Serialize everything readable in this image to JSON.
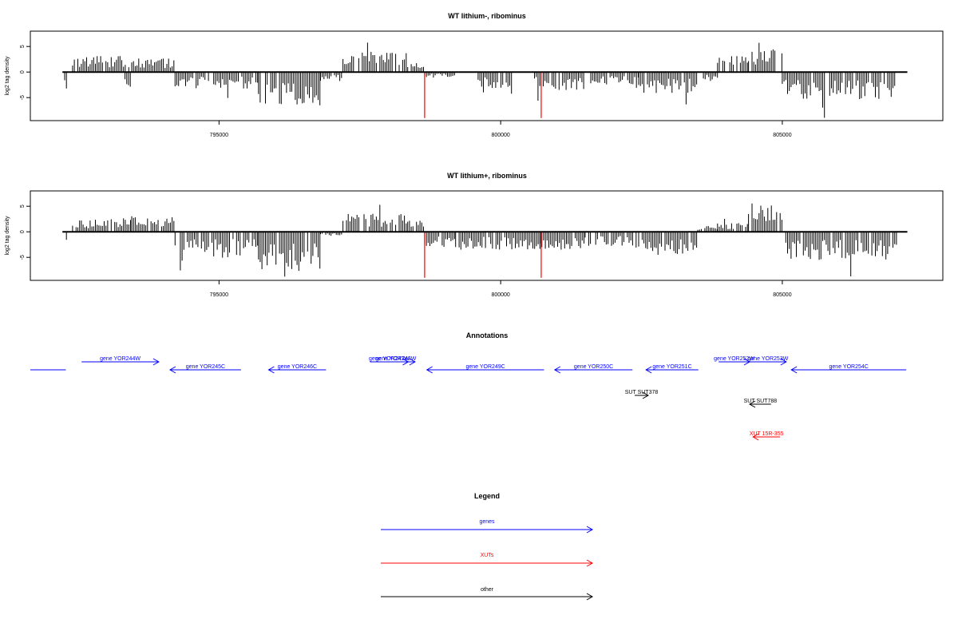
{
  "chart_data": [
    {
      "type": "bar",
      "title": "WT lithium-, ribominus",
      "ylabel": "log2 tag density",
      "xlim": [
        791650,
        807850
      ],
      "ylim": [
        -9.5,
        8.0
      ],
      "x_ticks": [
        795000,
        800000,
        805000
      ],
      "y_ticks": [
        -5,
        0,
        5
      ],
      "grid": false,
      "track_start": 792220,
      "track_end": 807220,
      "density_profile": [
        {
          "start": 792260,
          "end": 792300,
          "value": -3.0
        },
        {
          "start": 792400,
          "end": 793400,
          "value": 2.5
        },
        {
          "start": 793300,
          "end": 793450,
          "value": -3.5
        },
        {
          "start": 793450,
          "end": 794220,
          "value": 2.2
        },
        {
          "start": 794220,
          "end": 795700,
          "value": -2.6
        },
        {
          "start": 795700,
          "end": 796800,
          "value": -5.2
        },
        {
          "start": 796800,
          "end": 797200,
          "value": -1.5
        },
        {
          "start": 797200,
          "end": 798350,
          "value": 3.2
        },
        {
          "start": 798350,
          "end": 798650,
          "value": 2.0
        },
        {
          "start": 798650,
          "end": 799200,
          "value": -0.8
        },
        {
          "start": 799600,
          "end": 800200,
          "value": -2.5
        },
        {
          "start": 800600,
          "end": 801500,
          "value": -2.8
        },
        {
          "start": 801600,
          "end": 802450,
          "value": -2.0
        },
        {
          "start": 802450,
          "end": 803500,
          "value": -3.3
        },
        {
          "start": 803600,
          "end": 803850,
          "value": -1.5
        },
        {
          "start": 803850,
          "end": 804400,
          "value": 2.5
        },
        {
          "start": 804400,
          "end": 805000,
          "value": 3.8
        },
        {
          "start": 805000,
          "end": 807050,
          "value": -4.5
        }
      ],
      "red_markers": [
        798650,
        800720
      ],
      "red_marker_value": -9.0,
      "series_color": "#000000",
      "marker_color": "#ff0000"
    },
    {
      "type": "bar",
      "title": "WT lithium+, ribominus",
      "ylabel": "log2 tag density",
      "xlim": [
        791650,
        807850
      ],
      "ylim": [
        -9.5,
        8.0
      ],
      "x_ticks": [
        795000,
        800000,
        805000
      ],
      "y_ticks": [
        -5,
        0,
        5
      ],
      "grid": false,
      "track_start": 792220,
      "track_end": 807220,
      "density_profile": [
        {
          "start": 792260,
          "end": 792300,
          "value": -1.5
        },
        {
          "start": 792400,
          "end": 793450,
          "value": 2.0
        },
        {
          "start": 793450,
          "end": 794220,
          "value": 2.5
        },
        {
          "start": 794220,
          "end": 795700,
          "value": -4.0
        },
        {
          "start": 795700,
          "end": 796800,
          "value": -6.0
        },
        {
          "start": 796800,
          "end": 797200,
          "value": -0.8
        },
        {
          "start": 797200,
          "end": 798350,
          "value": 2.8
        },
        {
          "start": 798350,
          "end": 798650,
          "value": 2.0
        },
        {
          "start": 798650,
          "end": 799200,
          "value": -2.5
        },
        {
          "start": 799200,
          "end": 800700,
          "value": -2.8
        },
        {
          "start": 800700,
          "end": 801500,
          "value": -2.8
        },
        {
          "start": 801500,
          "end": 802450,
          "value": -2.2
        },
        {
          "start": 802450,
          "end": 803500,
          "value": -4.0
        },
        {
          "start": 803500,
          "end": 803850,
          "value": 1.0
        },
        {
          "start": 803850,
          "end": 804400,
          "value": 1.5
        },
        {
          "start": 804400,
          "end": 805000,
          "value": 4.5
        },
        {
          "start": 805000,
          "end": 807050,
          "value": -4.5
        }
      ],
      "red_markers": [
        798650,
        800720
      ],
      "red_marker_value": -9.0,
      "series_color": "#000000",
      "marker_color": "#ff0000"
    }
  ],
  "annotations": {
    "title": "Annotations",
    "features": [
      {
        "label": "",
        "start": 791650,
        "end": 792280,
        "strand": "-",
        "row": 1,
        "type": "gene"
      },
      {
        "label": "gene YOR244W",
        "start": 792560,
        "end": 793930,
        "strand": "+",
        "row": 0,
        "type": "gene"
      },
      {
        "label": "gene YOR245C",
        "start": 794130,
        "end": 795390,
        "strand": "-",
        "row": 1,
        "type": "gene"
      },
      {
        "label": "gene YOR246C",
        "start": 795880,
        "end": 796900,
        "strand": "-",
        "row": 1,
        "type": "gene"
      },
      {
        "label": "gene YOR247W",
        "start": 797680,
        "end": 798360,
        "strand": "+",
        "row": 0,
        "type": "gene"
      },
      {
        "label": "gene YOR248W",
        "start": 797800,
        "end": 798480,
        "strand": "+",
        "row": 0,
        "type": "gene"
      },
      {
        "label": "gene YOR249C",
        "start": 798690,
        "end": 800770,
        "strand": "-",
        "row": 1,
        "type": "gene"
      },
      {
        "label": "gene YOR250C",
        "start": 800960,
        "end": 802340,
        "strand": "-",
        "row": 1,
        "type": "gene"
      },
      {
        "label": "gene YOR251C",
        "start": 802580,
        "end": 803510,
        "strand": "-",
        "row": 1,
        "type": "gene"
      },
      {
        "label": "gene YOR252W",
        "start": 803870,
        "end": 804420,
        "strand": "+",
        "row": 0,
        "type": "gene"
      },
      {
        "label": "gene YOR253W",
        "start": 804420,
        "end": 805070,
        "strand": "+",
        "row": 0,
        "type": "gene"
      },
      {
        "label": "gene YOR254C",
        "start": 805160,
        "end": 807200,
        "strand": "-",
        "row": 1,
        "type": "gene"
      },
      {
        "label": "SUT SUT378",
        "start": 802380,
        "end": 802620,
        "strand": "+",
        "row": 3,
        "type": "other"
      },
      {
        "label": "SUT SUT788",
        "start": 804420,
        "end": 804800,
        "strand": "-",
        "row": 4,
        "type": "other"
      },
      {
        "label": "XUT 15R-355",
        "start": 804480,
        "end": 804960,
        "strand": "-",
        "row": 6,
        "type": "XUT"
      }
    ]
  },
  "legend": {
    "title": "Legend",
    "items": [
      {
        "label": "genes",
        "color": "#0000ff"
      },
      {
        "label": "XUTs",
        "color": "#ff0000"
      },
      {
        "label": "other",
        "color": "#000000"
      }
    ]
  },
  "colors": {
    "gene": "#0000ff",
    "XUT": "#ff0000",
    "other": "#000000",
    "axis": "#000000"
  }
}
